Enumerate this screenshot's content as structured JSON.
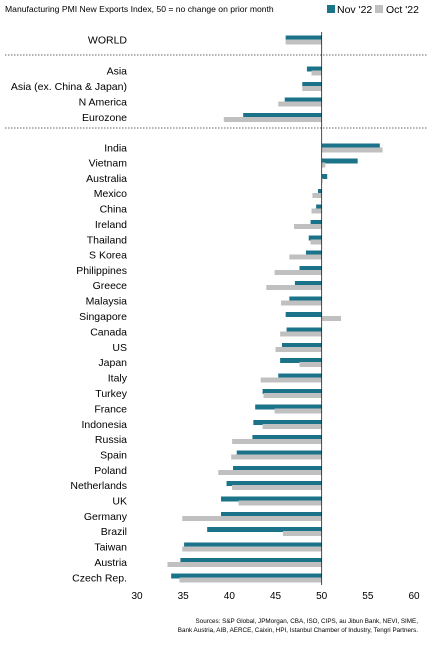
{
  "chart_data": {
    "type": "bar",
    "orientation": "horizontal",
    "title": "Manufacturing PMI New Exports Index, 50 = no change on prior month",
    "categories": [
      "WORLD",
      "Asia",
      "Asia (ex. China & Japan)",
      "N America",
      "Eurozone",
      "India",
      "Vietnam",
      "Australia",
      "Mexico",
      "China",
      "Ireland",
      "Thailand",
      "S Korea",
      "Philippines",
      "Greece",
      "Malaysia",
      "Singapore",
      "Canada",
      "US",
      "Japan",
      "Italy",
      "Turkey",
      "France",
      "Indonesia",
      "Russia",
      "Spain",
      "Poland",
      "Netherlands",
      "UK",
      "Germany",
      "Brazil",
      "Taiwan",
      "Austria",
      "Czech Rep."
    ],
    "series": [
      {
        "name": "Nov '22",
        "color": "#1a7388",
        "values": [
          46.1,
          48.4,
          47.9,
          46.0,
          41.5,
          56.3,
          53.9,
          50.6,
          49.6,
          49.4,
          48.8,
          48.6,
          48.3,
          47.6,
          47.1,
          46.5,
          46.1,
          46.2,
          45.7,
          45.5,
          45.3,
          43.6,
          42.8,
          42.6,
          42.5,
          40.8,
          40.4,
          39.7,
          39.1,
          39.1,
          37.6,
          35.1,
          34.7,
          33.7
        ]
      },
      {
        "name": "Oct '22",
        "color": "#c0c0c0",
        "values": [
          46.1,
          48.9,
          47.9,
          45.3,
          39.4,
          56.6,
          50.4,
          50.1,
          49.0,
          48.9,
          47.0,
          48.8,
          46.5,
          44.9,
          44.0,
          45.6,
          52.1,
          45.5,
          45.0,
          47.6,
          43.4,
          43.7,
          44.9,
          43.6,
          40.3,
          40.2,
          38.8,
          40.3,
          41.0,
          34.9,
          45.8,
          34.9,
          33.3,
          34.6
        ]
      }
    ],
    "xlim": [
      30,
      60
    ],
    "xticks": [
      "30",
      "35",
      "40",
      "45",
      "50",
      "55",
      "60"
    ],
    "dividers_after": [
      "WORLD",
      "Eurozone"
    ],
    "legend_position": "top-right"
  },
  "source": "Sources: S&P Global, JPMorgan, CBA, ISO, CIPS, au Jibun Bank, NEVI, SIME, Bank Austria, AIB, AERCE, Caixin, HPI, Istanbul Chamber of Industry, Tengri Partners."
}
